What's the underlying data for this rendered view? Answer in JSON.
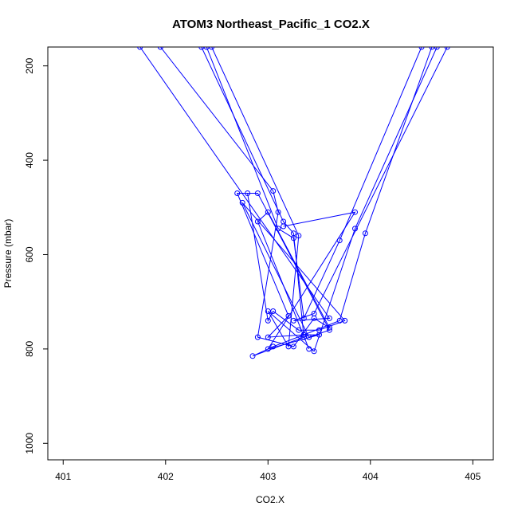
{
  "chart_data": {
    "type": "line",
    "title": "ATOM3 Northeast_Pacific_1 CO2.X",
    "xlabel": "CO2.X",
    "ylabel": "Pressure (mbar)",
    "xlim": [
      400.85,
      405.2
    ],
    "ylim": [
      1035,
      160
    ],
    "y_reversed": true,
    "x_ticks": [
      401,
      402,
      403,
      404,
      405
    ],
    "y_ticks": [
      200,
      400,
      600,
      800,
      1000
    ],
    "grid": false,
    "line_color": "#0000ff",
    "marker": "open-circle",
    "series": [
      {
        "x": [
          402.8,
          403.0,
          403.05,
          403.3,
          403.5,
          403.75,
          402.75,
          403.4,
          403.6,
          402.9,
          402.7,
          403.2,
          403.0,
          403.35,
          403.5,
          403.0,
          403.85,
          403.15
        ],
        "y": [
          470,
          740,
          720,
          760,
          760,
          740,
          490,
          775,
          760,
          470,
          470,
          730,
          775,
          770,
          770,
          800,
          510,
          540
        ]
      },
      {
        "x": [
          401.95,
          403.05,
          403.1,
          402.9,
          403.25,
          403.45,
          403.6,
          403.0,
          402.9,
          403.4
        ],
        "y": [
          160,
          465,
          510,
          775,
          795,
          735,
          755,
          510,
          530,
          800
        ]
      },
      {
        "x": [
          402.35,
          403.15,
          403.25,
          403.35,
          402.85,
          403.05,
          403.35,
          403.7,
          403.95,
          404.6
        ],
        "y": [
          160,
          530,
          555,
          775,
          815,
          795,
          770,
          740,
          555,
          160
        ]
      },
      {
        "x": [
          402.4,
          403.1,
          403.25,
          403.35,
          403.7,
          404.5
        ],
        "y": [
          160,
          545,
          565,
          735,
          570,
          160
        ]
      },
      {
        "x": [
          402.45,
          403.3,
          403.2,
          403.0,
          403.45,
          403.85,
          404.65
        ],
        "y": [
          160,
          560,
          795,
          720,
          805,
          545,
          160
        ]
      },
      {
        "x": [
          401.75,
          403.6,
          403.25,
          403.45,
          404.75
        ],
        "y": [
          160,
          735,
          740,
          725,
          160
        ]
      }
    ]
  }
}
